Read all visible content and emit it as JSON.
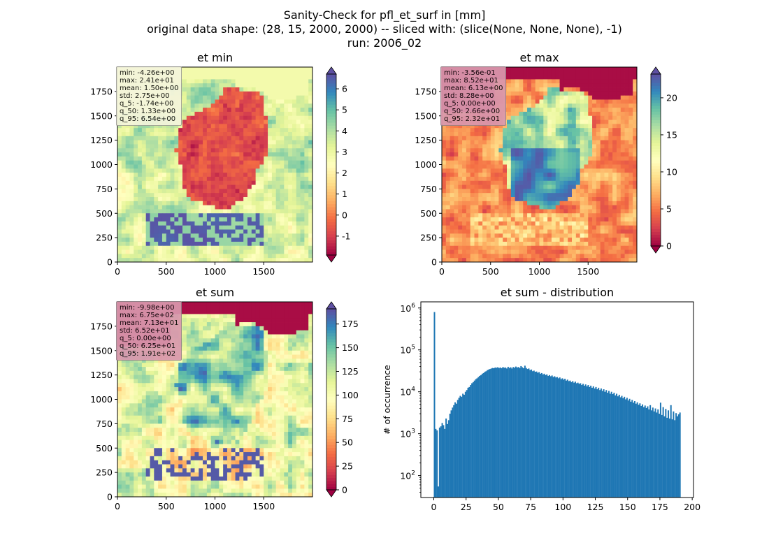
{
  "figure": {
    "title_lines": [
      "Sanity-Check for pfl_et_surf in [mm]",
      "original data shape: (28, 15, 2000, 2000) -- sliced with: (slice(None, None, None), -1)",
      "run: 2006_02"
    ]
  },
  "colors": {
    "hist_bar": "#1f77b4",
    "colormap": "Spectral",
    "land_low": "#9e0142",
    "sea_high": "#5e4fa2",
    "stats_box_light": "#f5f5dc",
    "stats_box_pink": "#d998ae"
  },
  "chart_data": [
    {
      "type": "heatmap",
      "title": "et min",
      "xlim": [
        0,
        2000
      ],
      "ylim": [
        0,
        2000
      ],
      "x_ticks": [
        0,
        500,
        1000,
        1500
      ],
      "y_ticks": [
        0,
        250,
        500,
        750,
        1000,
        1250,
        1500,
        1750
      ],
      "colorbar": {
        "vmin": -1.9,
        "vmax": 6.7,
        "ticks": [
          -1,
          0,
          1,
          2,
          3,
          4,
          5,
          6
        ],
        "extend": "both"
      },
      "stats": [
        "min: -4.26e+00",
        "max: 2.41e+01",
        "mean: 1.50e+00",
        "std: 2.75e+00",
        "q_5: -1.74e+00",
        "q_50: 1.33e+00",
        "q_95: 6.54e+00"
      ]
    },
    {
      "type": "heatmap",
      "title": "et max",
      "xlim": [
        0,
        2000
      ],
      "ylim": [
        0,
        2000
      ],
      "x_ticks": [
        0,
        500,
        1000,
        1500
      ],
      "y_ticks": [
        0,
        250,
        500,
        750,
        1000,
        1250,
        1500,
        1750
      ],
      "colorbar": {
        "vmin": 0,
        "vmax": 23.2,
        "ticks": [
          0,
          5,
          10,
          15,
          20
        ],
        "extend": "both"
      },
      "stats": [
        "min: -3.56e-01",
        "max: 8.52e+01",
        "mean: 6.13e+00",
        "std: 8.28e+00",
        "q_5: 0.00e+00",
        "q_50: 2.66e+00",
        "q_95: 2.32e+01"
      ]
    },
    {
      "type": "heatmap",
      "title": "et sum",
      "xlim": [
        0,
        2000
      ],
      "ylim": [
        0,
        2000
      ],
      "x_ticks": [
        0,
        500,
        1000,
        1500
      ],
      "y_ticks": [
        0,
        250,
        500,
        750,
        1000,
        1250,
        1500,
        1750
      ],
      "colorbar": {
        "vmin": 0,
        "vmax": 191,
        "ticks": [
          0,
          25,
          50,
          75,
          100,
          125,
          150,
          175
        ],
        "extend": "both"
      },
      "stats": [
        "min: -9.98e+00",
        "max: 6.75e+02",
        "mean: 7.13e+01",
        "std: 6.52e+01",
        "q_5: 0.00e+00",
        "q_50: 6.25e+01",
        "q_95: 1.91e+02"
      ]
    },
    {
      "type": "bar",
      "title": "et sum - distribution",
      "ylabel": "# of occurrence",
      "xlabel": "",
      "y_scale": "log",
      "xlim": [
        -10,
        201
      ],
      "ylim": [
        30,
        1400000
      ],
      "x_ticks": [
        0,
        25,
        50,
        75,
        100,
        125,
        150,
        175,
        200
      ],
      "y_ticks": [
        {
          "value": 100,
          "label": "10^2"
        },
        {
          "value": 1000,
          "label": "10^3"
        },
        {
          "value": 10000,
          "label": "10^4"
        },
        {
          "value": 100000,
          "label": "10^5"
        },
        {
          "value": 1000000,
          "label": "10^6"
        }
      ],
      "bin_width": 1,
      "bins": [
        {
          "x": 0,
          "y": 800000
        },
        {
          "x": 1,
          "y": 1300
        },
        {
          "x": 2,
          "y": 1200
        },
        {
          "x": 3,
          "y": 55
        },
        {
          "x": 4,
          "y": 1400
        },
        {
          "x": 5,
          "y": 1500
        },
        {
          "x": 6,
          "y": 1800
        },
        {
          "x": 7,
          "y": 1600
        },
        {
          "x": 8,
          "y": 1300
        },
        {
          "x": 9,
          "y": 2300
        },
        {
          "x": 10,
          "y": 1700
        },
        {
          "x": 11,
          "y": 2100
        },
        {
          "x": 12,
          "y": 3000
        },
        {
          "x": 13,
          "y": 3600
        },
        {
          "x": 14,
          "y": 4200
        },
        {
          "x": 15,
          "y": 4800
        },
        {
          "x": 16,
          "y": 5600
        },
        {
          "x": 17,
          "y": 5200
        },
        {
          "x": 18,
          "y": 6400
        },
        {
          "x": 19,
          "y": 7200
        },
        {
          "x": 20,
          "y": 8000
        },
        {
          "x": 21,
          "y": 7600
        },
        {
          "x": 22,
          "y": 9000
        },
        {
          "x": 23,
          "y": 8500
        },
        {
          "x": 24,
          "y": 10000
        },
        {
          "x": 25,
          "y": 11000
        },
        {
          "x": 26,
          "y": 12500
        },
        {
          "x": 27,
          "y": 13000
        },
        {
          "x": 28,
          "y": 14500
        },
        {
          "x": 29,
          "y": 16000
        },
        {
          "x": 30,
          "y": 17000
        },
        {
          "x": 31,
          "y": 18500
        },
        {
          "x": 32,
          "y": 20000
        },
        {
          "x": 33,
          "y": 21000
        },
        {
          "x": 34,
          "y": 22500
        },
        {
          "x": 35,
          "y": 24000
        },
        {
          "x": 36,
          "y": 25000
        },
        {
          "x": 37,
          "y": 27000
        },
        {
          "x": 38,
          "y": 28000
        },
        {
          "x": 39,
          "y": 30000
        },
        {
          "x": 40,
          "y": 31000
        },
        {
          "x": 41,
          "y": 33000
        },
        {
          "x": 42,
          "y": 34000
        },
        {
          "x": 43,
          "y": 35000
        },
        {
          "x": 44,
          "y": 36000
        },
        {
          "x": 45,
          "y": 37000
        },
        {
          "x": 46,
          "y": 36500
        },
        {
          "x": 47,
          "y": 38000
        },
        {
          "x": 48,
          "y": 37500
        },
        {
          "x": 49,
          "y": 38500
        },
        {
          "x": 50,
          "y": 37000
        },
        {
          "x": 51,
          "y": 38000
        },
        {
          "x": 52,
          "y": 36500
        },
        {
          "x": 53,
          "y": 39000
        },
        {
          "x": 54,
          "y": 37500
        },
        {
          "x": 55,
          "y": 38000
        },
        {
          "x": 56,
          "y": 36000
        },
        {
          "x": 57,
          "y": 39500
        },
        {
          "x": 58,
          "y": 37000
        },
        {
          "x": 59,
          "y": 38500
        },
        {
          "x": 60,
          "y": 36000
        },
        {
          "x": 61,
          "y": 39000
        },
        {
          "x": 62,
          "y": 37500
        },
        {
          "x": 63,
          "y": 40000
        },
        {
          "x": 64,
          "y": 38000
        },
        {
          "x": 65,
          "y": 39000
        },
        {
          "x": 66,
          "y": 37000
        },
        {
          "x": 67,
          "y": 41000
        },
        {
          "x": 68,
          "y": 38500
        },
        {
          "x": 69,
          "y": 36500
        },
        {
          "x": 70,
          "y": 42000
        },
        {
          "x": 71,
          "y": 37000
        },
        {
          "x": 72,
          "y": 35000
        },
        {
          "x": 73,
          "y": 36000
        },
        {
          "x": 74,
          "y": 33000
        },
        {
          "x": 75,
          "y": 34000
        },
        {
          "x": 76,
          "y": 31000
        },
        {
          "x": 77,
          "y": 32000
        },
        {
          "x": 78,
          "y": 30000
        },
        {
          "x": 79,
          "y": 30500
        },
        {
          "x": 80,
          "y": 28500
        },
        {
          "x": 81,
          "y": 29500
        },
        {
          "x": 82,
          "y": 27000
        },
        {
          "x": 83,
          "y": 28000
        },
        {
          "x": 84,
          "y": 26000
        },
        {
          "x": 85,
          "y": 27000
        },
        {
          "x": 86,
          "y": 25000
        },
        {
          "x": 87,
          "y": 26000
        },
        {
          "x": 88,
          "y": 24000
        },
        {
          "x": 89,
          "y": 25000
        },
        {
          "x": 90,
          "y": 23500
        },
        {
          "x": 91,
          "y": 24500
        },
        {
          "x": 92,
          "y": 22500
        },
        {
          "x": 93,
          "y": 23500
        },
        {
          "x": 94,
          "y": 22000
        },
        {
          "x": 95,
          "y": 22500
        },
        {
          "x": 96,
          "y": 21000
        },
        {
          "x": 97,
          "y": 22000
        },
        {
          "x": 98,
          "y": 20000
        },
        {
          "x": 99,
          "y": 21000
        },
        {
          "x": 100,
          "y": 19500
        },
        {
          "x": 101,
          "y": 20500
        },
        {
          "x": 102,
          "y": 18500
        },
        {
          "x": 103,
          "y": 19500
        },
        {
          "x": 104,
          "y": 18000
        },
        {
          "x": 105,
          "y": 18500
        },
        {
          "x": 106,
          "y": 17000
        },
        {
          "x": 107,
          "y": 18000
        },
        {
          "x": 108,
          "y": 16500
        },
        {
          "x": 109,
          "y": 17500
        },
        {
          "x": 110,
          "y": 16000
        },
        {
          "x": 111,
          "y": 16500
        },
        {
          "x": 112,
          "y": 15500
        },
        {
          "x": 113,
          "y": 16000
        },
        {
          "x": 114,
          "y": 14500
        },
        {
          "x": 115,
          "y": 15500
        },
        {
          "x": 116,
          "y": 14000
        },
        {
          "x": 117,
          "y": 15000
        },
        {
          "x": 118,
          "y": 13500
        },
        {
          "x": 119,
          "y": 14500
        },
        {
          "x": 120,
          "y": 13000
        },
        {
          "x": 121,
          "y": 14000
        },
        {
          "x": 122,
          "y": 12500
        },
        {
          "x": 123,
          "y": 13500
        },
        {
          "x": 124,
          "y": 12000
        },
        {
          "x": 125,
          "y": 13000
        },
        {
          "x": 126,
          "y": 11500
        },
        {
          "x": 127,
          "y": 12500
        },
        {
          "x": 128,
          "y": 11000
        },
        {
          "x": 129,
          "y": 12000
        },
        {
          "x": 130,
          "y": 10500
        },
        {
          "x": 131,
          "y": 11500
        },
        {
          "x": 132,
          "y": 10000
        },
        {
          "x": 133,
          "y": 11000
        },
        {
          "x": 134,
          "y": 9500
        },
        {
          "x": 135,
          "y": 10500
        },
        {
          "x": 136,
          "y": 9000
        },
        {
          "x": 137,
          "y": 10000
        },
        {
          "x": 138,
          "y": 8800
        },
        {
          "x": 139,
          "y": 9500
        },
        {
          "x": 140,
          "y": 8200
        },
        {
          "x": 141,
          "y": 9000
        },
        {
          "x": 142,
          "y": 7800
        },
        {
          "x": 143,
          "y": 8500
        },
        {
          "x": 144,
          "y": 7400
        },
        {
          "x": 145,
          "y": 8000
        },
        {
          "x": 146,
          "y": 7000
        },
        {
          "x": 147,
          "y": 7600
        },
        {
          "x": 148,
          "y": 6600
        },
        {
          "x": 149,
          "y": 7200
        },
        {
          "x": 150,
          "y": 6200
        },
        {
          "x": 151,
          "y": 6800
        },
        {
          "x": 152,
          "y": 5800
        },
        {
          "x": 153,
          "y": 6400
        },
        {
          "x": 154,
          "y": 5500
        },
        {
          "x": 155,
          "y": 6000
        },
        {
          "x": 156,
          "y": 5200
        },
        {
          "x": 157,
          "y": 5600
        },
        {
          "x": 158,
          "y": 4900
        },
        {
          "x": 159,
          "y": 5300
        },
        {
          "x": 160,
          "y": 4600
        },
        {
          "x": 161,
          "y": 5000
        },
        {
          "x": 162,
          "y": 4300
        },
        {
          "x": 163,
          "y": 4700
        },
        {
          "x": 164,
          "y": 4100
        },
        {
          "x": 165,
          "y": 4500
        },
        {
          "x": 166,
          "y": 3800
        },
        {
          "x": 167,
          "y": 4800
        },
        {
          "x": 168,
          "y": 3600
        },
        {
          "x": 169,
          "y": 4200
        },
        {
          "x": 170,
          "y": 3400
        },
        {
          "x": 171,
          "y": 4000
        },
        {
          "x": 172,
          "y": 3200
        },
        {
          "x": 173,
          "y": 3800
        },
        {
          "x": 174,
          "y": 3000
        },
        {
          "x": 175,
          "y": 5500
        },
        {
          "x": 176,
          "y": 2800
        },
        {
          "x": 177,
          "y": 4300
        },
        {
          "x": 178,
          "y": 2600
        },
        {
          "x": 179,
          "y": 3900
        },
        {
          "x": 180,
          "y": 2400
        },
        {
          "x": 181,
          "y": 3600
        },
        {
          "x": 182,
          "y": 2300
        },
        {
          "x": 183,
          "y": 4800
        },
        {
          "x": 184,
          "y": 2200
        },
        {
          "x": 185,
          "y": 3400
        },
        {
          "x": 186,
          "y": 2100
        },
        {
          "x": 187,
          "y": 3100
        },
        {
          "x": 188,
          "y": 2600
        },
        {
          "x": 189,
          "y": 2900
        },
        {
          "x": 190,
          "y": 3200
        }
      ]
    }
  ]
}
